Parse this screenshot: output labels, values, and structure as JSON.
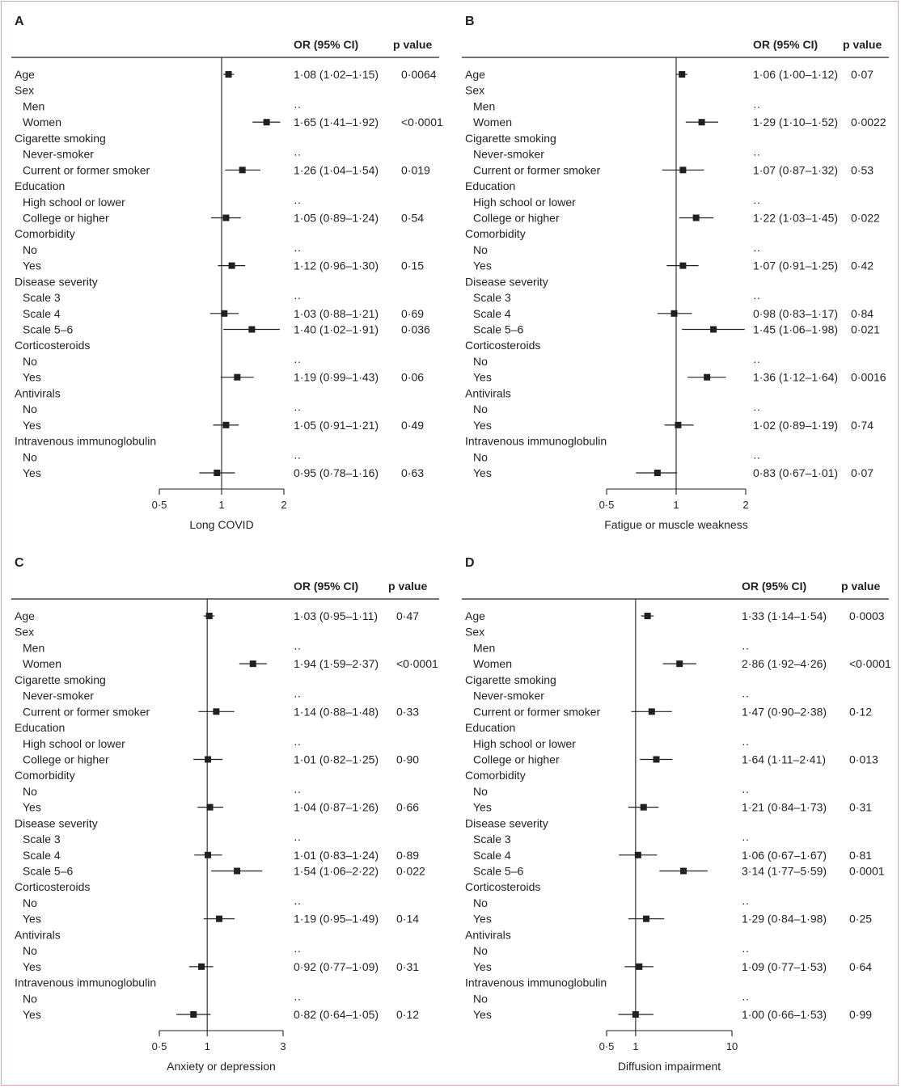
{
  "headers": {
    "or": "OR (95% CI)",
    "p": "p value"
  },
  "chart_data": [
    {
      "type": "forest",
      "panel": "A",
      "xlabel": "Long COVID",
      "x_scale": "log",
      "xlim": [
        0.5,
        2
      ],
      "ticks": [
        0.5,
        1,
        2
      ],
      "tick_labels": [
        "0·5",
        "1",
        "2"
      ],
      "rows": [
        {
          "label": "Age",
          "indent": 0,
          "or": 1.08,
          "lo": 1.02,
          "hi": 1.15,
          "or_text": "1·08 (1·02–1·15)",
          "p_text": "0·0064"
        },
        {
          "label": "Sex",
          "indent": 0
        },
        {
          "label": "Men",
          "indent": 1,
          "or_text": "··"
        },
        {
          "label": "Women",
          "indent": 1,
          "or": 1.65,
          "lo": 1.41,
          "hi": 1.92,
          "or_text": "1·65 (1·41–1·92)",
          "p_text": "<0·0001"
        },
        {
          "label": "Cigarette smoking",
          "indent": 0
        },
        {
          "label": "Never-smoker",
          "indent": 1,
          "or_text": "··"
        },
        {
          "label": "Current or former smoker",
          "indent": 1,
          "or": 1.26,
          "lo": 1.04,
          "hi": 1.54,
          "or_text": "1·26 (1·04–1·54)",
          "p_text": "0·019"
        },
        {
          "label": "Education",
          "indent": 0
        },
        {
          "label": "High school or lower",
          "indent": 1,
          "or_text": "··"
        },
        {
          "label": "College or higher",
          "indent": 1,
          "or": 1.05,
          "lo": 0.89,
          "hi": 1.24,
          "or_text": "1·05 (0·89–1·24)",
          "p_text": "0·54"
        },
        {
          "label": "Comorbidity",
          "indent": 0
        },
        {
          "label": "No",
          "indent": 1,
          "or_text": "··"
        },
        {
          "label": "Yes",
          "indent": 1,
          "or": 1.12,
          "lo": 0.96,
          "hi": 1.3,
          "or_text": "1·12 (0·96–1·30)",
          "p_text": "0·15"
        },
        {
          "label": "Disease severity",
          "indent": 0
        },
        {
          "label": "Scale 3",
          "indent": 1,
          "or_text": "··"
        },
        {
          "label": "Scale 4",
          "indent": 1,
          "or": 1.03,
          "lo": 0.88,
          "hi": 1.21,
          "or_text": "1·03 (0·88–1·21)",
          "p_text": "0·69"
        },
        {
          "label": "Scale 5–6",
          "indent": 1,
          "or": 1.4,
          "lo": 1.02,
          "hi": 1.91,
          "or_text": "1·40 (1·02–1·91)",
          "p_text": "0·036"
        },
        {
          "label": "Corticosteroids",
          "indent": 0
        },
        {
          "label": "No",
          "indent": 1,
          "or_text": "··"
        },
        {
          "label": "Yes",
          "indent": 1,
          "or": 1.19,
          "lo": 0.99,
          "hi": 1.43,
          "or_text": "1·19 (0·99–1·43)",
          "p_text": "0·06"
        },
        {
          "label": "Antivirals",
          "indent": 0
        },
        {
          "label": "No",
          "indent": 1,
          "or_text": "··"
        },
        {
          "label": "Yes",
          "indent": 1,
          "or": 1.05,
          "lo": 0.91,
          "hi": 1.21,
          "or_text": "1·05 (0·91–1·21)",
          "p_text": "0·49"
        },
        {
          "label": "Intravenous immunoglobulin",
          "indent": 0
        },
        {
          "label": "No",
          "indent": 1,
          "or_text": "··"
        },
        {
          "label": "Yes",
          "indent": 1,
          "or": 0.95,
          "lo": 0.78,
          "hi": 1.16,
          "or_text": "0·95 (0·78–1·16)",
          "p_text": "0·63"
        }
      ]
    },
    {
      "type": "forest",
      "panel": "B",
      "xlabel": "Fatigue or muscle weakness",
      "x_scale": "log",
      "xlim": [
        0.5,
        2
      ],
      "ticks": [
        0.5,
        1,
        2
      ],
      "tick_labels": [
        "0·5",
        "1",
        "2"
      ],
      "rows": [
        {
          "label": "Age",
          "indent": 0,
          "or": 1.06,
          "lo": 1.0,
          "hi": 1.12,
          "or_text": "1·06 (1·00–1·12)",
          "p_text": "0·07"
        },
        {
          "label": "Sex",
          "indent": 0
        },
        {
          "label": "Men",
          "indent": 1,
          "or_text": "··"
        },
        {
          "label": "Women",
          "indent": 1,
          "or": 1.29,
          "lo": 1.1,
          "hi": 1.52,
          "or_text": "1·29 (1·10–1·52)",
          "p_text": "0·0022"
        },
        {
          "label": "Cigarette smoking",
          "indent": 0
        },
        {
          "label": "Never-smoker",
          "indent": 1,
          "or_text": "··"
        },
        {
          "label": "Current or former smoker",
          "indent": 1,
          "or": 1.07,
          "lo": 0.87,
          "hi": 1.32,
          "or_text": "1·07 (0·87–1·32)",
          "p_text": "0·53"
        },
        {
          "label": "Education",
          "indent": 0
        },
        {
          "label": "High school or lower",
          "indent": 1,
          "or_text": "··"
        },
        {
          "label": "College or higher",
          "indent": 1,
          "or": 1.22,
          "lo": 1.03,
          "hi": 1.45,
          "or_text": "1·22 (1·03–1·45)",
          "p_text": "0·022"
        },
        {
          "label": "Comorbidity",
          "indent": 0
        },
        {
          "label": "No",
          "indent": 1,
          "or_text": "··"
        },
        {
          "label": "Yes",
          "indent": 1,
          "or": 1.07,
          "lo": 0.91,
          "hi": 1.25,
          "or_text": "1·07 (0·91–1·25)",
          "p_text": "0·42"
        },
        {
          "label": "Disease severity",
          "indent": 0
        },
        {
          "label": "Scale 3",
          "indent": 1,
          "or_text": "··"
        },
        {
          "label": "Scale 4",
          "indent": 1,
          "or": 0.98,
          "lo": 0.83,
          "hi": 1.17,
          "or_text": "0·98 (0·83–1·17)",
          "p_text": "0·84"
        },
        {
          "label": "Scale 5–6",
          "indent": 1,
          "or": 1.45,
          "lo": 1.06,
          "hi": 1.98,
          "or_text": "1·45 (1·06–1·98)",
          "p_text": "0·021"
        },
        {
          "label": "Corticosteroids",
          "indent": 0
        },
        {
          "label": "No",
          "indent": 1,
          "or_text": "··"
        },
        {
          "label": "Yes",
          "indent": 1,
          "or": 1.36,
          "lo": 1.12,
          "hi": 1.64,
          "or_text": "1·36 (1·12–1·64)",
          "p_text": "0·0016"
        },
        {
          "label": "Antivirals",
          "indent": 0
        },
        {
          "label": "No",
          "indent": 1,
          "or_text": "··"
        },
        {
          "label": "Yes",
          "indent": 1,
          "or": 1.02,
          "lo": 0.89,
          "hi": 1.19,
          "or_text": "1·02 (0·89–1·19)",
          "p_text": "0·74"
        },
        {
          "label": "Intravenous immunoglobulin",
          "indent": 0
        },
        {
          "label": "No",
          "indent": 1,
          "or_text": "··"
        },
        {
          "label": "Yes",
          "indent": 1,
          "or": 0.83,
          "lo": 0.67,
          "hi": 1.01,
          "or_text": "0·83 (0·67–1·01)",
          "p_text": "0·07"
        }
      ]
    },
    {
      "type": "forest",
      "panel": "C",
      "xlabel": "Anxiety or depression",
      "x_scale": "log",
      "xlim": [
        0.5,
        3
      ],
      "ticks": [
        0.5,
        1,
        3
      ],
      "tick_labels": [
        "0·5",
        "1",
        "3"
      ],
      "rows": [
        {
          "label": "Age",
          "indent": 0,
          "or": 1.03,
          "lo": 0.95,
          "hi": 1.11,
          "or_text": "1·03 (0·95–1·11)",
          "p_text": "0·47"
        },
        {
          "label": "Sex",
          "indent": 0
        },
        {
          "label": "Men",
          "indent": 1,
          "or_text": "··"
        },
        {
          "label": "Women",
          "indent": 1,
          "or": 1.94,
          "lo": 1.59,
          "hi": 2.37,
          "or_text": "1·94 (1·59–2·37)",
          "p_text": "<0·0001"
        },
        {
          "label": "Cigarette smoking",
          "indent": 0
        },
        {
          "label": "Never-smoker",
          "indent": 1,
          "or_text": "··"
        },
        {
          "label": "Current or former smoker",
          "indent": 1,
          "or": 1.14,
          "lo": 0.88,
          "hi": 1.48,
          "or_text": "1·14 (0·88–1·48)",
          "p_text": "0·33"
        },
        {
          "label": "Education",
          "indent": 0
        },
        {
          "label": "High school or lower",
          "indent": 1,
          "or_text": "··"
        },
        {
          "label": "College or higher",
          "indent": 1,
          "or": 1.01,
          "lo": 0.82,
          "hi": 1.25,
          "or_text": "1·01 (0·82–1·25)",
          "p_text": "0·90"
        },
        {
          "label": "Comorbidity",
          "indent": 0
        },
        {
          "label": "No",
          "indent": 1,
          "or_text": "··"
        },
        {
          "label": "Yes",
          "indent": 1,
          "or": 1.04,
          "lo": 0.87,
          "hi": 1.26,
          "or_text": "1·04 (0·87–1·26)",
          "p_text": "0·66"
        },
        {
          "label": "Disease severity",
          "indent": 0
        },
        {
          "label": "Scale 3",
          "indent": 1,
          "or_text": "··"
        },
        {
          "label": "Scale 4",
          "indent": 1,
          "or": 1.01,
          "lo": 0.83,
          "hi": 1.24,
          "or_text": "1·01 (0·83–1·24)",
          "p_text": "0·89"
        },
        {
          "label": "Scale 5–6",
          "indent": 1,
          "or": 1.54,
          "lo": 1.06,
          "hi": 2.22,
          "or_text": "1·54 (1·06–2·22)",
          "p_text": "0·022"
        },
        {
          "label": "Corticosteroids",
          "indent": 0
        },
        {
          "label": "No",
          "indent": 1,
          "or_text": "··"
        },
        {
          "label": "Yes",
          "indent": 1,
          "or": 1.19,
          "lo": 0.95,
          "hi": 1.49,
          "or_text": "1·19 (0·95–1·49)",
          "p_text": "0·14"
        },
        {
          "label": "Antivirals",
          "indent": 0
        },
        {
          "label": "No",
          "indent": 1,
          "or_text": "··"
        },
        {
          "label": "Yes",
          "indent": 1,
          "or": 0.92,
          "lo": 0.77,
          "hi": 1.09,
          "or_text": "0·92 (0·77–1·09)",
          "p_text": "0·31"
        },
        {
          "label": "Intravenous immunoglobulin",
          "indent": 0
        },
        {
          "label": "No",
          "indent": 1,
          "or_text": "··"
        },
        {
          "label": "Yes",
          "indent": 1,
          "or": 0.82,
          "lo": 0.64,
          "hi": 1.05,
          "or_text": "0·82 (0·64–1·05)",
          "p_text": "0·12"
        }
      ]
    },
    {
      "type": "forest",
      "panel": "D",
      "xlabel": "Diffusion impairment",
      "x_scale": "log",
      "xlim": [
        0.5,
        10
      ],
      "ticks": [
        0.5,
        1,
        10
      ],
      "tick_labels": [
        "0·5",
        "1",
        "10"
      ],
      "rows": [
        {
          "label": "Age",
          "indent": 0,
          "or": 1.33,
          "lo": 1.14,
          "hi": 1.54,
          "or_text": "1·33 (1·14–1·54)",
          "p_text": "0·0003"
        },
        {
          "label": "Sex",
          "indent": 0
        },
        {
          "label": "Men",
          "indent": 1,
          "or_text": "··"
        },
        {
          "label": "Women",
          "indent": 1,
          "or": 2.86,
          "lo": 1.92,
          "hi": 4.26,
          "or_text": "2·86 (1·92–4·26)",
          "p_text": "<0·0001"
        },
        {
          "label": "Cigarette smoking",
          "indent": 0
        },
        {
          "label": "Never-smoker",
          "indent": 1,
          "or_text": "··"
        },
        {
          "label": "Current or former smoker",
          "indent": 1,
          "or": 1.47,
          "lo": 0.9,
          "hi": 2.38,
          "or_text": "1·47 (0·90–2·38)",
          "p_text": "0·12"
        },
        {
          "label": "Education",
          "indent": 0
        },
        {
          "label": "High school or lower",
          "indent": 1,
          "or_text": "··"
        },
        {
          "label": "College or higher",
          "indent": 1,
          "or": 1.64,
          "lo": 1.11,
          "hi": 2.41,
          "or_text": "1·64 (1·11–2·41)",
          "p_text": "0·013"
        },
        {
          "label": "Comorbidity",
          "indent": 0
        },
        {
          "label": "No",
          "indent": 1,
          "or_text": "··"
        },
        {
          "label": "Yes",
          "indent": 1,
          "or": 1.21,
          "lo": 0.84,
          "hi": 1.73,
          "or_text": "1·21 (0·84–1·73)",
          "p_text": "0·31"
        },
        {
          "label": "Disease severity",
          "indent": 0
        },
        {
          "label": "Scale 3",
          "indent": 1,
          "or_text": "··"
        },
        {
          "label": "Scale 4",
          "indent": 1,
          "or": 1.06,
          "lo": 0.67,
          "hi": 1.67,
          "or_text": "1·06 (0·67–1·67)",
          "p_text": "0·81"
        },
        {
          "label": "Scale 5–6",
          "indent": 1,
          "or": 3.14,
          "lo": 1.77,
          "hi": 5.59,
          "or_text": "3·14 (1·77–5·59)",
          "p_text": "0·0001"
        },
        {
          "label": "Corticosteroids",
          "indent": 0
        },
        {
          "label": "No",
          "indent": 1,
          "or_text": "··"
        },
        {
          "label": "Yes",
          "indent": 1,
          "or": 1.29,
          "lo": 0.84,
          "hi": 1.98,
          "or_text": "1·29 (0·84–1·98)",
          "p_text": "0·25"
        },
        {
          "label": "Antivirals",
          "indent": 0
        },
        {
          "label": "No",
          "indent": 1,
          "or_text": "··"
        },
        {
          "label": "Yes",
          "indent": 1,
          "or": 1.09,
          "lo": 0.77,
          "hi": 1.53,
          "or_text": "1·09 (0·77–1·53)",
          "p_text": "0·64"
        },
        {
          "label": "Intravenous immunoglobulin",
          "indent": 0
        },
        {
          "label": "No",
          "indent": 1,
          "or_text": "··"
        },
        {
          "label": "Yes",
          "indent": 1,
          "or": 1.0,
          "lo": 0.66,
          "hi": 1.53,
          "or_text": "1·00 (0·66–1·53)",
          "p_text": "0·99"
        }
      ]
    }
  ]
}
